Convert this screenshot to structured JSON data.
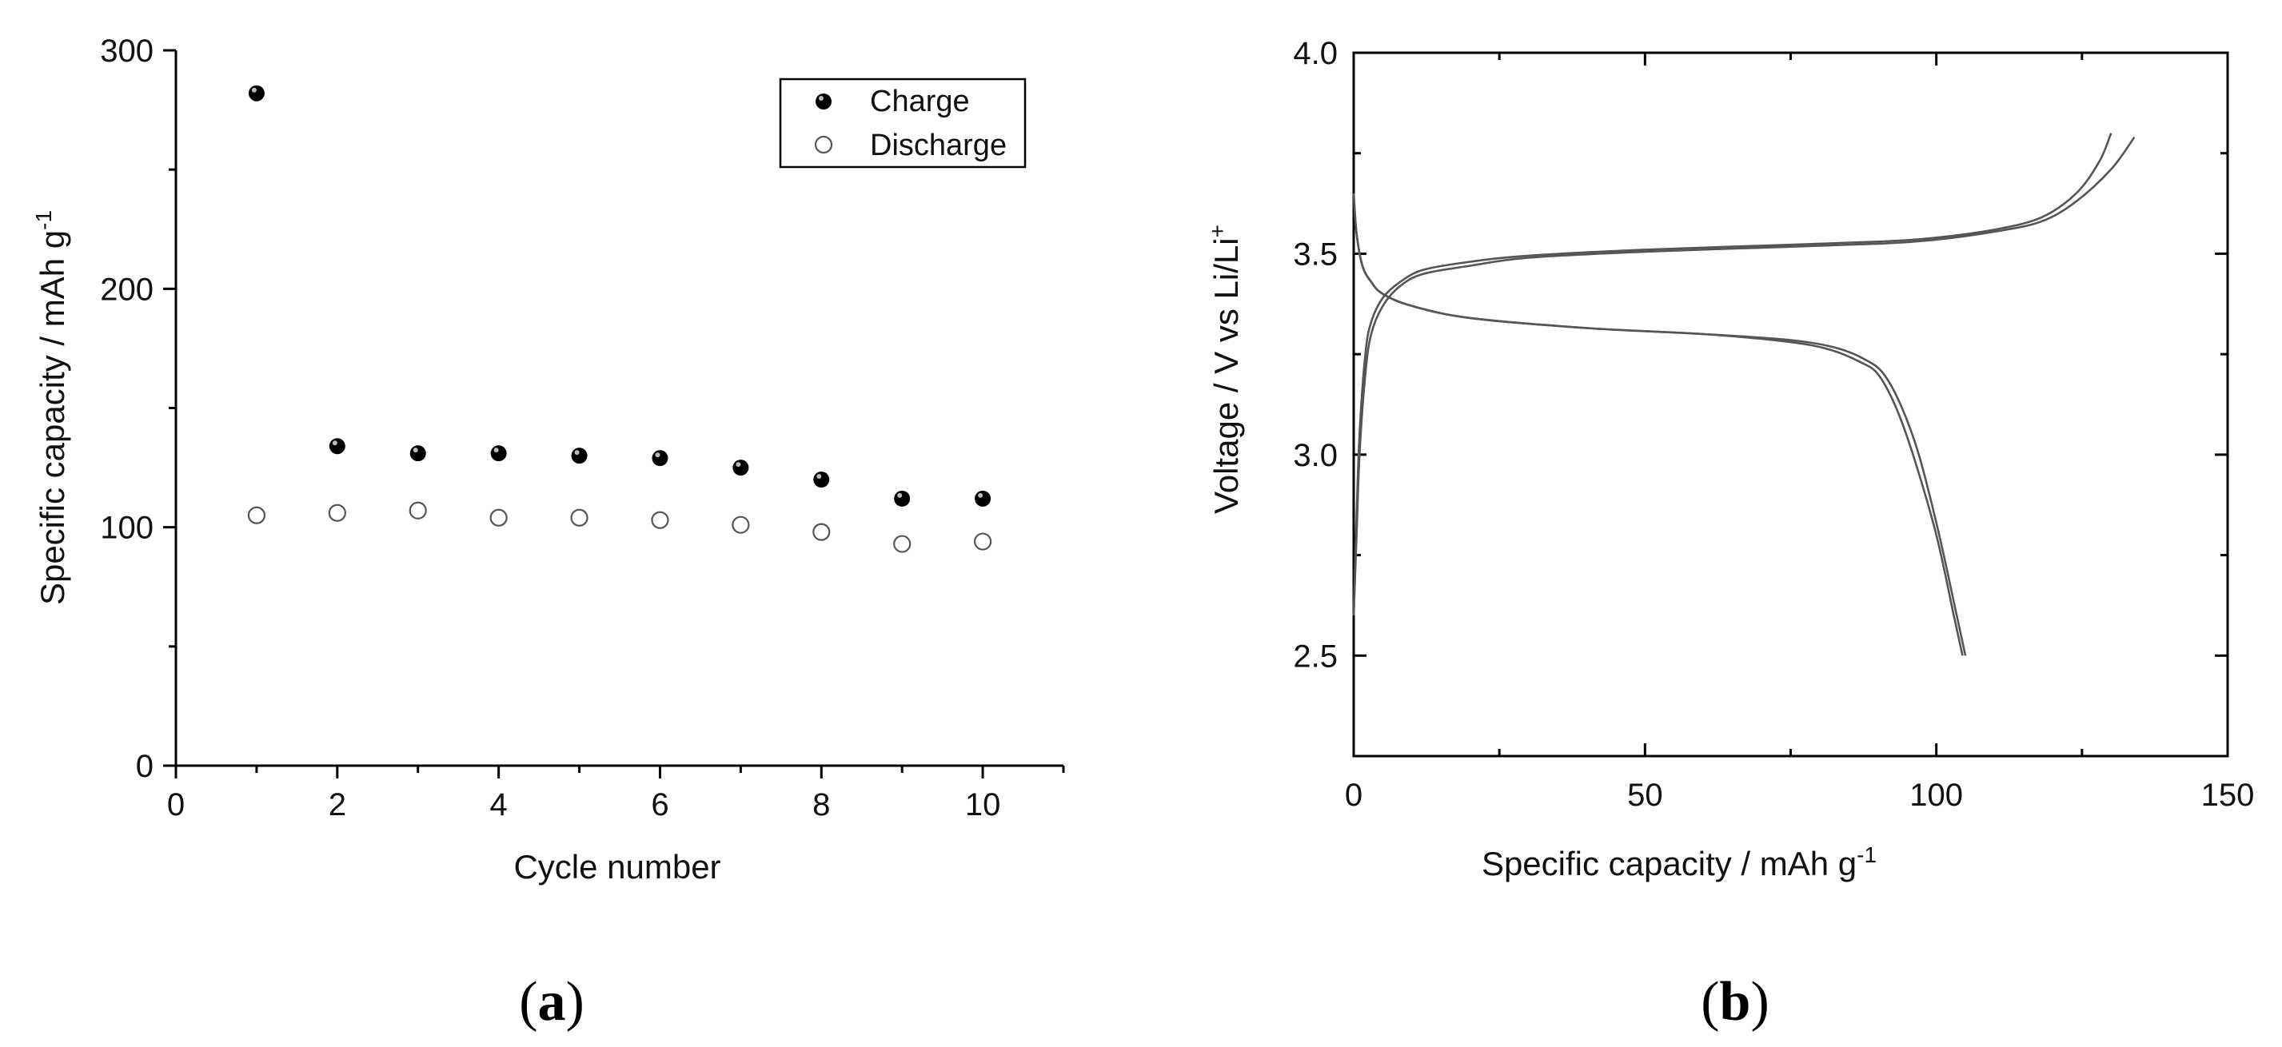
{
  "chart_data": [
    {
      "type": "scatter",
      "panel_label": "a",
      "xlabel": "Cycle number",
      "ylabel": "Specific capacity / mAh g",
      "ylabel_sup": "-1",
      "xlim": [
        0,
        11
      ],
      "ylim": [
        0,
        300
      ],
      "xticks": [
        0,
        2,
        4,
        6,
        8,
        10
      ],
      "yticks": [
        0,
        100,
        200,
        300
      ],
      "legend_position": "top-right",
      "series": [
        {
          "name": "Charge",
          "marker": "filled-sphere",
          "color": "#000000",
          "x": [
            1,
            2,
            3,
            4,
            5,
            6,
            7,
            8,
            9,
            10
          ],
          "y": [
            282,
            134,
            131,
            131,
            130,
            129,
            125,
            120,
            112,
            112
          ]
        },
        {
          "name": "Discharge",
          "marker": "open-circle",
          "color": "#555555",
          "x": [
            1,
            2,
            3,
            4,
            5,
            6,
            7,
            8,
            9,
            10
          ],
          "y": [
            105,
            106,
            107,
            104,
            104,
            103,
            101,
            98,
            93,
            94
          ]
        }
      ]
    },
    {
      "type": "line",
      "panel_label": "b",
      "xlabel": "Specific capacity / mAh g",
      "xlabel_sup": "-1",
      "ylabel": "Voltage / V vs Li/Li",
      "ylabel_sup": "+",
      "xlim": [
        0,
        150
      ],
      "ylim": [
        2.25,
        4.0
      ],
      "xticks": [
        0,
        50,
        100,
        150
      ],
      "yticks": [
        2.5,
        3.0,
        3.5,
        4.0
      ],
      "ytick_labels": [
        "2.5",
        "3.0",
        "3.5",
        "4.0"
      ],
      "series": [
        {
          "color": "#555555",
          "x": [
            0,
            0.5,
            1,
            2,
            3,
            5,
            8,
            12,
            20,
            30,
            50,
            70,
            90,
            100,
            110,
            118,
            124,
            128,
            130
          ],
          "y": [
            2.6,
            2.85,
            3.05,
            3.25,
            3.33,
            3.39,
            3.43,
            3.46,
            3.48,
            3.495,
            3.51,
            3.52,
            3.53,
            3.54,
            3.56,
            3.59,
            3.65,
            3.73,
            3.8
          ]
        },
        {
          "color": "#555555",
          "x": [
            0,
            0.5,
            1,
            2,
            3,
            5,
            8,
            12,
            20,
            30,
            50,
            70,
            90,
            100,
            110,
            118,
            124,
            130,
            134
          ],
          "y": [
            2.6,
            2.8,
            3.0,
            3.2,
            3.3,
            3.37,
            3.42,
            3.45,
            3.47,
            3.49,
            3.505,
            3.515,
            3.525,
            3.535,
            3.555,
            3.58,
            3.63,
            3.71,
            3.79
          ]
        },
        {
          "color": "#555555",
          "x": [
            0,
            0.5,
            1.5,
            3,
            5,
            10,
            20,
            40,
            60,
            75,
            82,
            87,
            90,
            93,
            96,
            100,
            103,
            104.5
          ],
          "y": [
            3.65,
            3.55,
            3.47,
            3.43,
            3.4,
            3.37,
            3.34,
            3.315,
            3.3,
            3.28,
            3.26,
            3.23,
            3.2,
            3.12,
            3.0,
            2.8,
            2.6,
            2.5
          ]
        },
        {
          "color": "#555555",
          "x": [
            0,
            0.5,
            1.5,
            3,
            5,
            10,
            20,
            40,
            60,
            75,
            83,
            88,
            91,
            94,
            97,
            100.5,
            103.5,
            105
          ],
          "y": [
            3.65,
            3.55,
            3.47,
            3.43,
            3.4,
            3.37,
            3.34,
            3.315,
            3.3,
            3.285,
            3.265,
            3.235,
            3.2,
            3.12,
            3.0,
            2.8,
            2.6,
            2.5
          ]
        }
      ]
    }
  ]
}
